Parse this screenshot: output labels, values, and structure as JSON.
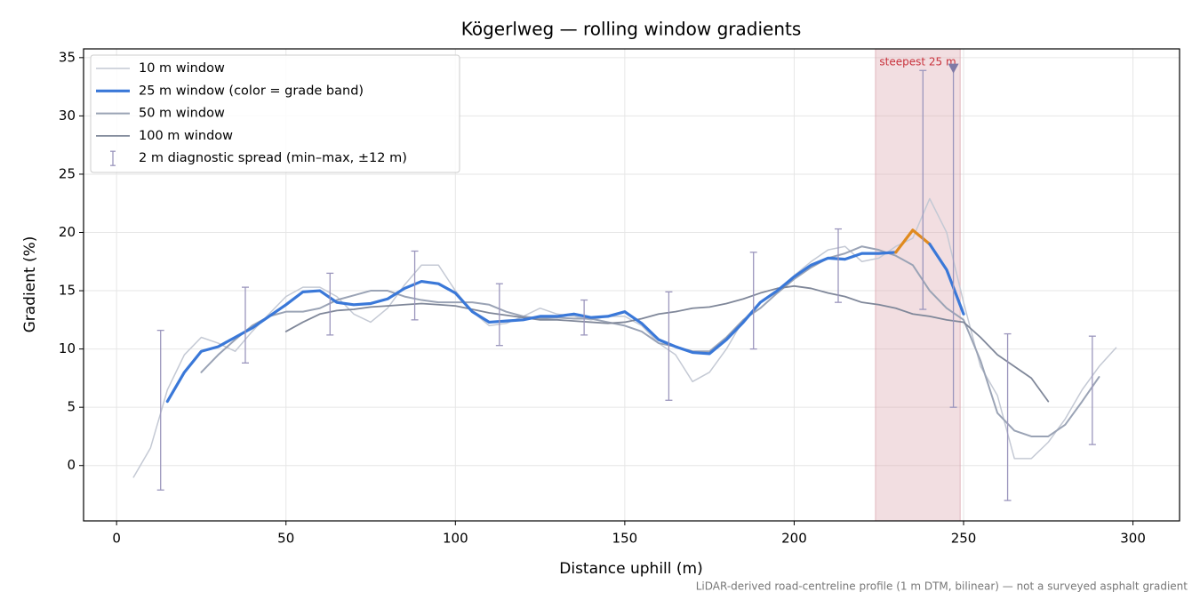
{
  "chart_data": {
    "type": "line",
    "title": "Kögerlweg — rolling window gradients",
    "x_label": "Distance uphill (m)",
    "y_label": "Gradient (%)",
    "footnote": "LiDAR-derived road-centreline profile (1 m DTM, bilinear) — not a surveyed asphalt gradient",
    "xlim": [
      -9.75,
      313.75
    ],
    "ylim": [
      -4.75,
      35.75
    ],
    "xticks": [
      0,
      50,
      100,
      150,
      200,
      250,
      300
    ],
    "yticks": [
      0,
      5,
      10,
      15,
      20,
      25,
      30,
      35
    ],
    "grid": true,
    "legend": "upper left",
    "x": [
      5,
      10,
      15,
      20,
      25,
      30,
      35,
      40,
      45,
      50,
      55,
      60,
      65,
      70,
      75,
      80,
      85,
      90,
      95,
      100,
      105,
      110,
      115,
      120,
      125,
      130,
      135,
      140,
      145,
      150,
      155,
      160,
      165,
      170,
      175,
      180,
      185,
      190,
      195,
      200,
      205,
      210,
      215,
      220,
      225,
      230,
      235,
      240,
      245,
      250,
      255,
      260,
      265,
      270,
      275,
      280,
      285,
      290,
      295
    ],
    "series": [
      {
        "name": "10 m window",
        "color": "#c4c9d4",
        "width": 1.5,
        "values": [
          -1.0,
          1.5,
          6.5,
          9.5,
          11.0,
          10.5,
          9.8,
          11.5,
          13.0,
          14.5,
          15.3,
          15.3,
          14.5,
          13.0,
          12.3,
          13.5,
          15.5,
          17.2,
          17.2,
          15.0,
          13.2,
          12.0,
          12.2,
          12.8,
          13.5,
          13.0,
          12.8,
          12.5,
          12.8,
          12.8,
          12.0,
          10.5,
          9.5,
          7.2,
          8.0,
          10.0,
          12.5,
          14.0,
          15.0,
          16.3,
          17.5,
          18.5,
          18.8,
          17.5,
          17.8,
          18.8,
          19.5,
          22.9,
          20.0,
          14.0,
          8.5,
          6.0,
          0.6,
          0.6,
          2.0,
          4.0,
          6.5,
          8.5,
          10.1
        ]
      },
      {
        "name": "25 m window (color = grade band)",
        "color": "#3a78d8",
        "width": 3.2,
        "band_threshold": 20,
        "band_color": "#e08a1e",
        "values": [
          null,
          null,
          5.5,
          8.0,
          9.8,
          10.2,
          11.0,
          11.8,
          12.8,
          13.8,
          14.9,
          15.0,
          14.0,
          13.8,
          13.9,
          14.3,
          15.2,
          15.8,
          15.6,
          14.8,
          13.2,
          12.3,
          12.4,
          12.5,
          12.8,
          12.8,
          13.0,
          12.7,
          12.8,
          13.2,
          12.2,
          10.8,
          10.2,
          9.7,
          9.6,
          10.8,
          12.3,
          14.0,
          15.0,
          16.2,
          17.2,
          17.8,
          17.7,
          18.2,
          18.2,
          18.3,
          20.2,
          19.0,
          16.8,
          13.0,
          null,
          null,
          null,
          null,
          null,
          null,
          null,
          null,
          null
        ]
      },
      {
        "name": "50 m window",
        "color": "#9aa3b5",
        "width": 2,
        "values": [
          null,
          null,
          null,
          null,
          8.0,
          9.5,
          10.8,
          12.0,
          12.8,
          13.2,
          13.2,
          13.5,
          14.2,
          14.6,
          15.0,
          15.0,
          14.5,
          14.2,
          14.0,
          14.0,
          14.0,
          13.8,
          13.2,
          12.8,
          12.6,
          12.7,
          12.6,
          12.6,
          12.3,
          12.0,
          11.5,
          10.5,
          10.2,
          9.8,
          9.8,
          11.0,
          12.5,
          13.5,
          14.8,
          16.0,
          17.0,
          17.8,
          18.2,
          18.8,
          18.5,
          18.0,
          17.2,
          15.0,
          13.5,
          12.5,
          9.0,
          4.5,
          3.0,
          2.5,
          2.5,
          3.5,
          5.5,
          7.6,
          null
        ]
      },
      {
        "name": "100 m window",
        "color": "#7f8799",
        "width": 1.8,
        "values": [
          null,
          null,
          null,
          null,
          null,
          null,
          null,
          null,
          null,
          11.5,
          12.3,
          13.0,
          13.3,
          13.4,
          13.6,
          13.7,
          13.8,
          13.9,
          13.8,
          13.7,
          13.4,
          13.1,
          12.9,
          12.7,
          12.5,
          12.5,
          12.4,
          12.3,
          12.2,
          12.3,
          12.6,
          13.0,
          13.2,
          13.5,
          13.6,
          13.9,
          14.3,
          14.8,
          15.2,
          15.4,
          15.2,
          14.8,
          14.5,
          14.0,
          13.8,
          13.5,
          13.0,
          12.8,
          12.5,
          12.3,
          11.0,
          9.5,
          8.5,
          7.5,
          5.5,
          null,
          null,
          null,
          null
        ]
      }
    ],
    "spread": {
      "name": "2 m diagnostic spread (min–max, ±12 m)",
      "color": "#9b96bd",
      "x": [
        13,
        38,
        63,
        88,
        113,
        138,
        163,
        188,
        213,
        238,
        247,
        263,
        288
      ],
      "min": [
        -2.1,
        8.8,
        11.2,
        12.5,
        10.3,
        11.2,
        5.6,
        10.0,
        14.0,
        13.4,
        5.0,
        -3.0,
        1.8
      ],
      "max": [
        11.6,
        15.3,
        16.5,
        18.4,
        15.6,
        14.2,
        14.9,
        18.3,
        20.3,
        33.9,
        34.3,
        11.3,
        11.1
      ]
    },
    "highlight": {
      "label": "steepest 25 m",
      "x0": 224,
      "x1": 249,
      "color": "#d9a0aa",
      "label_color": "#c8323c"
    },
    "peak_marker": {
      "x": 247,
      "y": 34.1,
      "color": "#7f7aa6"
    }
  }
}
